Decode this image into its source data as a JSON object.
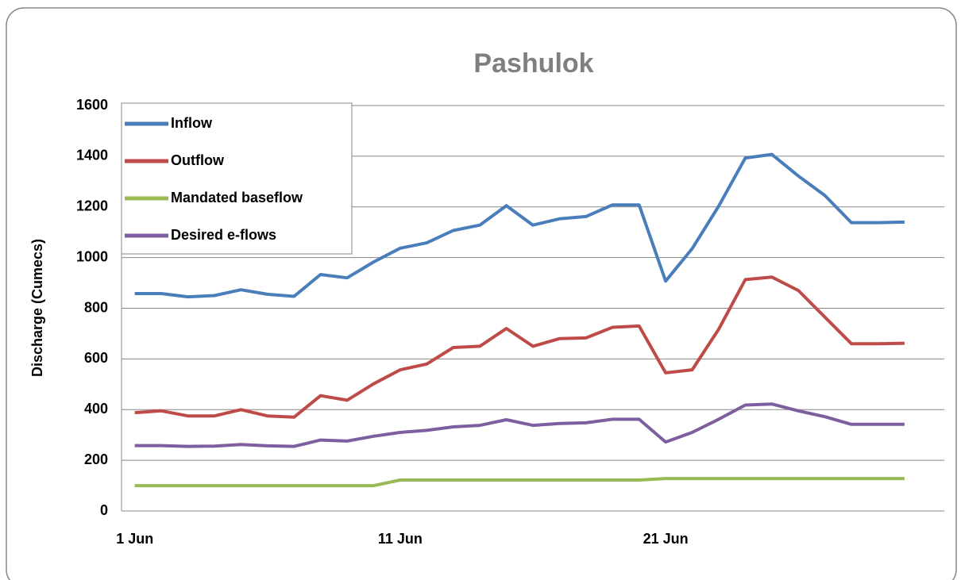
{
  "chart_data": {
    "type": "line",
    "title": "Pashulok",
    "y_label": "Discharge (Cumecs)",
    "categories": [
      "1 Jun",
      null,
      null,
      null,
      null,
      null,
      null,
      null,
      null,
      null,
      "11 Jun",
      null,
      null,
      null,
      null,
      null,
      null,
      null,
      null,
      null,
      "21 Jun",
      null,
      null,
      null,
      null,
      null,
      null,
      null,
      null,
      null,
      null
    ],
    "series": [
      {
        "name": "Inflow",
        "color": "#4a7ebb",
        "values": [
          858,
          858,
          845,
          850,
          873,
          855,
          847,
          933,
          920,
          983,
          1037,
          1058,
          1107,
          1128,
          1205,
          1128,
          1153,
          1162,
          1208,
          1208,
          907,
          1035,
          1203,
          1393,
          1407,
          1322,
          1245,
          1138,
          1138,
          1140,
          null
        ]
      },
      {
        "name": "Outflow",
        "color": "#be4b48",
        "values": [
          388,
          395,
          375,
          375,
          400,
          375,
          370,
          455,
          437,
          502,
          557,
          580,
          645,
          650,
          720,
          650,
          680,
          683,
          725,
          730,
          545,
          557,
          717,
          913,
          923,
          870,
          765,
          660,
          660,
          662,
          null
        ]
      },
      {
        "name": "Mandated baseflow",
        "color": "#98b954",
        "values": [
          100,
          100,
          100,
          100,
          100,
          100,
          100,
          100,
          100,
          100,
          122,
          122,
          122,
          122,
          122,
          122,
          122,
          122,
          122,
          122,
          128,
          128,
          128,
          128,
          128,
          128,
          128,
          128,
          128,
          128,
          null
        ]
      },
      {
        "name": "Desired e-flows",
        "color": "#7d5fa0",
        "values": [
          258,
          258,
          255,
          256,
          262,
          257,
          255,
          280,
          276,
          295,
          310,
          318,
          332,
          338,
          360,
          338,
          345,
          348,
          362,
          362,
          272,
          310,
          362,
          418,
          422,
          395,
          372,
          342,
          342,
          342,
          null
        ]
      }
    ],
    "ylim": [
      0,
      1600
    ],
    "yticks": [
      0,
      200,
      400,
      600,
      800,
      1000,
      1200,
      1400,
      1600
    ],
    "grid": true,
    "legend": "top-left"
  }
}
